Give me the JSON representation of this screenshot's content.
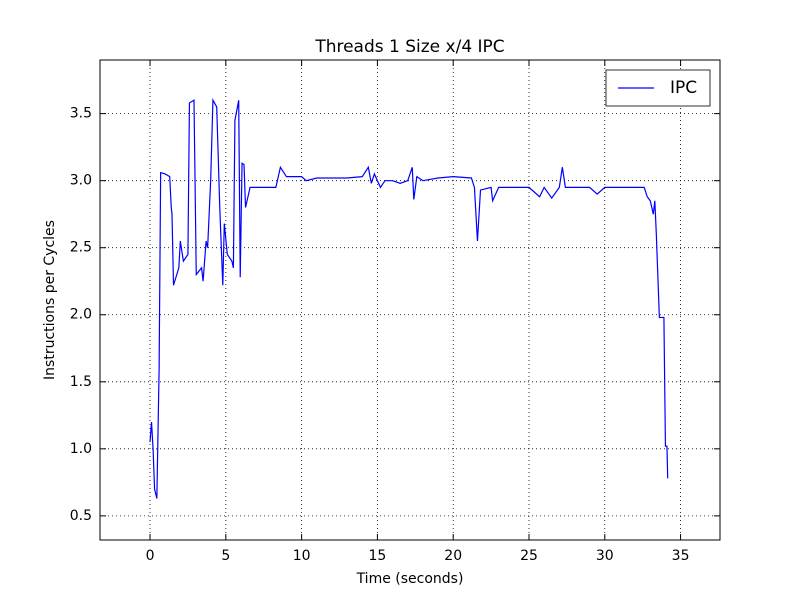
{
  "chart_data": {
    "type": "line",
    "title": "Threads 1 Size x/4 IPC",
    "x_label": "Time (seconds)",
    "y_label": "Instructions per Cycles",
    "x": [
      0.0,
      0.1,
      0.2,
      0.3,
      0.45,
      0.6,
      0.7,
      1.0,
      1.3,
      1.4,
      1.45,
      1.55,
      1.9,
      2.0,
      2.2,
      2.5,
      2.6,
      2.9,
      3.05,
      3.4,
      3.5,
      3.7,
      3.8,
      4.0,
      4.15,
      4.4,
      4.6,
      4.8,
      4.9,
      5.1,
      5.4,
      5.5,
      5.6,
      5.85,
      5.95,
      6.07,
      6.2,
      6.3,
      6.6,
      8.3,
      8.6,
      9.0,
      10.0,
      10.3,
      11.0,
      13.0,
      14.0,
      14.4,
      14.6,
      14.8,
      15.2,
      15.5,
      16.0,
      16.5,
      17.0,
      17.3,
      17.4,
      17.6,
      18.0,
      19.0,
      20.0,
      21.2,
      21.4,
      21.6,
      21.8,
      22.5,
      22.6,
      23.0,
      25.0,
      25.7,
      26.0,
      26.5,
      27.0,
      27.2,
      27.4,
      29.0,
      29.5,
      30.0,
      32.6,
      32.8,
      33.0,
      33.2,
      33.3,
      33.4,
      33.6,
      33.9,
      34.0,
      34.1,
      34.15
    ],
    "series": [
      {
        "name": "IPC",
        "color": "#0000ff",
        "values": [
          1.05,
          1.2,
          1.0,
          0.7,
          0.63,
          1.6,
          3.06,
          3.05,
          3.03,
          2.8,
          2.75,
          2.22,
          2.35,
          2.55,
          2.4,
          2.45,
          3.58,
          3.6,
          2.3,
          2.35,
          2.25,
          2.55,
          2.5,
          3.0,
          3.6,
          3.55,
          2.8,
          2.22,
          2.68,
          2.45,
          2.4,
          2.35,
          3.45,
          3.6,
          2.28,
          3.13,
          3.12,
          2.8,
          2.95,
          2.95,
          3.1,
          3.03,
          3.03,
          3.0,
          3.02,
          3.02,
          3.03,
          3.1,
          2.98,
          3.05,
          2.95,
          3.0,
          3.0,
          2.98,
          3.0,
          3.1,
          2.86,
          3.03,
          3.0,
          3.02,
          3.03,
          3.02,
          2.95,
          2.55,
          2.93,
          2.95,
          2.85,
          2.95,
          2.95,
          2.88,
          2.95,
          2.87,
          2.95,
          3.1,
          2.95,
          2.95,
          2.9,
          2.95,
          2.95,
          2.88,
          2.85,
          2.75,
          2.85,
          2.6,
          1.98,
          1.98,
          1.02,
          1.02,
          0.78
        ]
      }
    ],
    "xlim": [
      -3.3,
      37.6
    ],
    "ylim": [
      0.32,
      3.9
    ],
    "xticks": [
      0,
      5,
      10,
      15,
      20,
      25,
      30,
      35
    ],
    "yticks": [
      0.5,
      {
        "value": 1,
        "label": "1.0"
      },
      1.5,
      {
        "value": 2,
        "label": "2.0"
      },
      2.5,
      {
        "value": 3,
        "label": "3.0"
      },
      3.5
    ],
    "grid": true,
    "legend": "upper right"
  }
}
